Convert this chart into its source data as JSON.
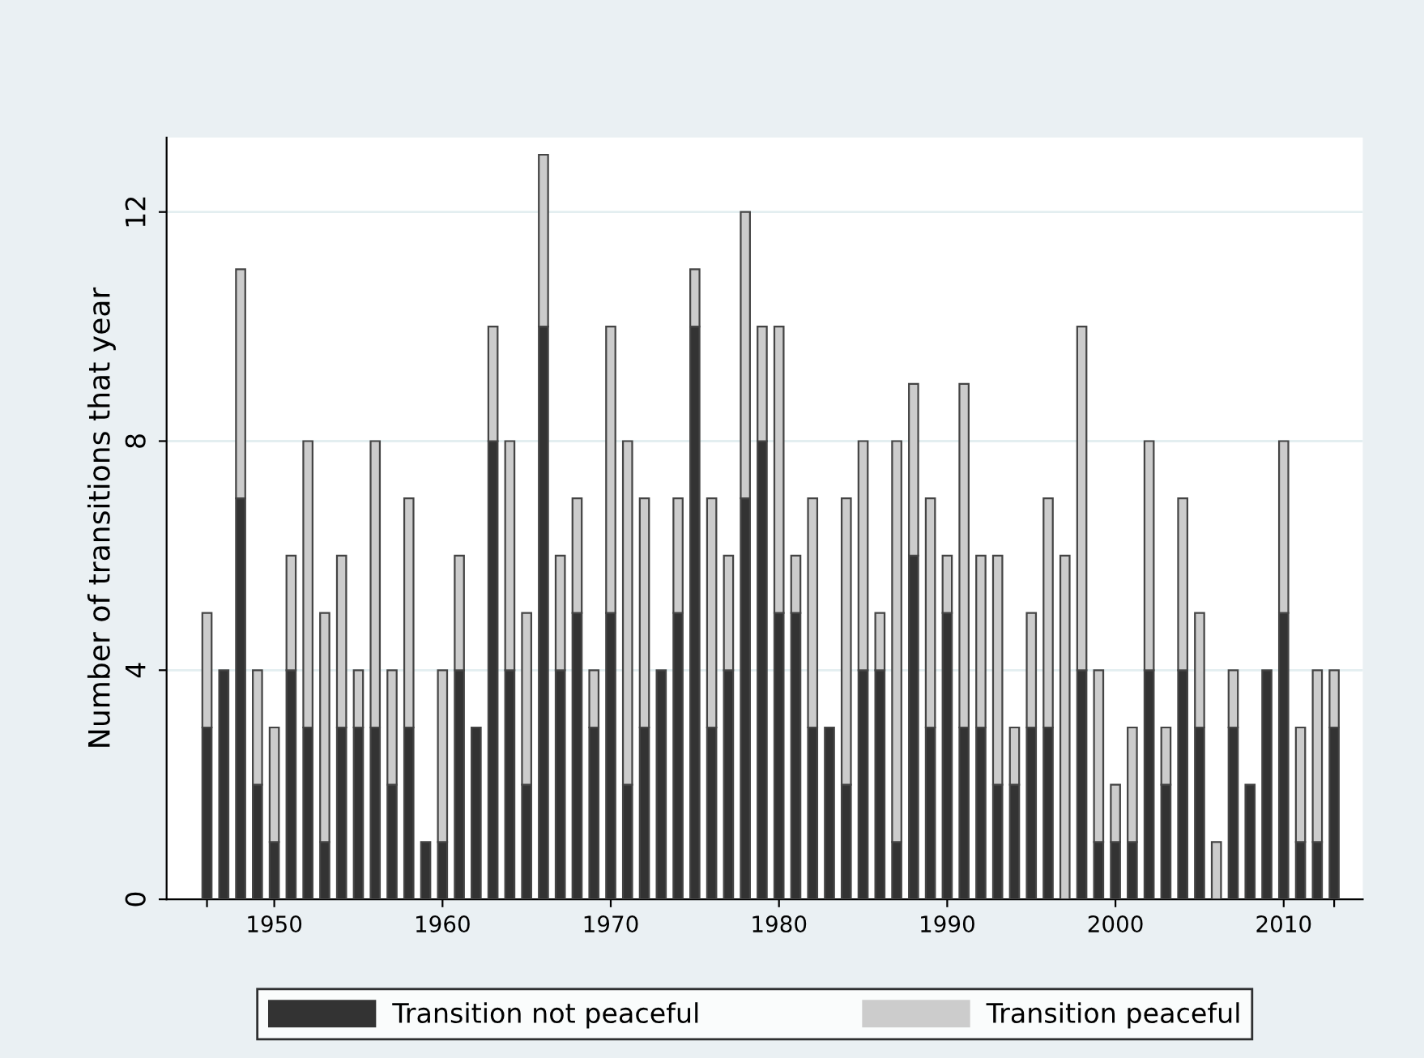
{
  "chart_data": {
    "type": "bar",
    "stacked": true,
    "ylabel": "Number of transitions that year",
    "x": [
      1946,
      1947,
      1948,
      1949,
      1950,
      1951,
      1952,
      1953,
      1954,
      1955,
      1956,
      1957,
      1958,
      1959,
      1960,
      1961,
      1962,
      1963,
      1964,
      1965,
      1966,
      1967,
      1968,
      1969,
      1970,
      1971,
      1972,
      1973,
      1974,
      1975,
      1976,
      1977,
      1978,
      1979,
      1980,
      1981,
      1982,
      1983,
      1984,
      1985,
      1986,
      1987,
      1988,
      1989,
      1990,
      1991,
      1992,
      1993,
      1994,
      1995,
      1996,
      1997,
      1998,
      1999,
      2000,
      2001,
      2002,
      2003,
      2004,
      2005,
      2006,
      2007,
      2008,
      2009,
      2010,
      2011,
      2012,
      2013
    ],
    "series": [
      {
        "name": "Transition not peaceful",
        "color": "#333333",
        "values": [
          3,
          4,
          7,
          2,
          1,
          4,
          3,
          1,
          3,
          3,
          3,
          2,
          3,
          1,
          1,
          4,
          3,
          8,
          4,
          2,
          10,
          4,
          5,
          3,
          5,
          2,
          3,
          4,
          5,
          10,
          3,
          4,
          7,
          8,
          5,
          5,
          3,
          3,
          2,
          4,
          4,
          1,
          6,
          3,
          5,
          3,
          3,
          2,
          2,
          3,
          3,
          0,
          4,
          1,
          1,
          1,
          4,
          2,
          4,
          3,
          0,
          3,
          2,
          4,
          5,
          1,
          1,
          3
        ]
      },
      {
        "name": "Transition peaceful",
        "color": "#cccccc",
        "values": [
          2,
          0,
          4,
          2,
          2,
          2,
          5,
          4,
          3,
          1,
          5,
          2,
          4,
          0,
          3,
          2,
          0,
          2,
          4,
          3,
          3,
          2,
          2,
          1,
          5,
          6,
          4,
          0,
          2,
          1,
          4,
          2,
          5,
          2,
          5,
          1,
          4,
          0,
          5,
          4,
          1,
          7,
          3,
          4,
          1,
          6,
          3,
          4,
          1,
          2,
          4,
          6,
          6,
          3,
          1,
          2,
          4,
          1,
          3,
          2,
          1,
          1,
          0,
          0,
          3,
          2,
          3,
          1
        ]
      }
    ],
    "xlim": [
      1943.6,
      2014.7
    ],
    "xticks": [
      {
        "value": 1946,
        "label": null
      },
      1950,
      1960,
      1970,
      1980,
      1990,
      2000,
      2010,
      {
        "value": 2013,
        "label": null
      }
    ],
    "ylim": [
      0,
      13.3
    ],
    "yticks": [
      0,
      4,
      8,
      12
    ],
    "grid": "y",
    "legend": "bottom"
  }
}
